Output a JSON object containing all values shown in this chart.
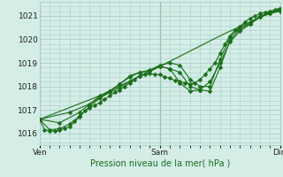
{
  "bg_color": "#d4ede6",
  "grid_color": "#a8cfca",
  "line_color": "#1a6e1a",
  "marker_color": "#1a6e1a",
  "title": "Pression niveau de la mer( hPa )",
  "xlim": [
    0,
    48
  ],
  "ylim": [
    1015.5,
    1021.6
  ],
  "yticks": [
    1016,
    1017,
    1018,
    1019,
    1020,
    1021
  ],
  "xtick_labels": [
    [
      "Ven",
      0
    ],
    [
      "Sam",
      24
    ],
    [
      "Dim",
      48
    ]
  ],
  "series": [
    [
      0,
      1016.6,
      1,
      1016.15,
      2,
      1016.1,
      3,
      1016.1,
      4,
      1016.15,
      5,
      1016.2,
      6,
      1016.3,
      7,
      1016.5,
      8,
      1016.7,
      9,
      1016.95,
      10,
      1017.1,
      11,
      1017.2,
      12,
      1017.3,
      13,
      1017.45,
      14,
      1017.6,
      15,
      1017.75,
      16,
      1017.85,
      17,
      1018.0,
      18,
      1018.15,
      19,
      1018.3,
      20,
      1018.45,
      21,
      1018.5,
      22,
      1018.55,
      23,
      1018.5,
      24,
      1018.5,
      25,
      1018.4,
      26,
      1018.35,
      27,
      1018.25,
      28,
      1018.2,
      29,
      1018.15,
      30,
      1018.1,
      31,
      1018.15,
      32,
      1018.3,
      33,
      1018.5,
      34,
      1018.75,
      35,
      1019.0,
      36,
      1019.4,
      37,
      1019.8,
      38,
      1020.15,
      39,
      1020.4,
      40,
      1020.55,
      41,
      1020.75,
      42,
      1020.9,
      43,
      1021.0,
      44,
      1021.1,
      45,
      1021.15,
      46,
      1021.2,
      47,
      1021.25,
      48,
      1021.3
    ],
    [
      0,
      1016.6,
      2,
      1016.15,
      4,
      1016.2,
      6,
      1016.4,
      8,
      1016.75,
      10,
      1017.15,
      12,
      1017.5,
      14,
      1017.75,
      16,
      1017.95,
      18,
      1018.2,
      20,
      1018.45,
      22,
      1018.65,
      24,
      1018.85,
      26,
      1018.75,
      28,
      1018.15,
      30,
      1017.8,
      32,
      1017.85,
      34,
      1018.2,
      36,
      1019.0,
      38,
      1019.9,
      40,
      1020.35,
      42,
      1020.65,
      44,
      1021.0,
      46,
      1021.15,
      48,
      1021.25
    ],
    [
      0,
      1016.6,
      4,
      1016.45,
      8,
      1016.9,
      12,
      1017.6,
      14,
      1017.8,
      16,
      1018.1,
      18,
      1018.45,
      20,
      1018.6,
      22,
      1018.65,
      24,
      1018.85,
      26,
      1018.75,
      28,
      1018.6,
      30,
      1018.0,
      32,
      1017.85,
      34,
      1017.8,
      36,
      1018.8,
      38,
      1019.95,
      40,
      1020.45,
      42,
      1020.65,
      44,
      1020.95,
      46,
      1021.1,
      48,
      1021.2
    ],
    [
      0,
      1016.6,
      6,
      1016.9,
      10,
      1017.25,
      14,
      1017.8,
      16,
      1018.1,
      18,
      1018.4,
      20,
      1018.6,
      22,
      1018.7,
      24,
      1018.9,
      26,
      1019.0,
      28,
      1018.9,
      30,
      1018.3,
      32,
      1018.0,
      34,
      1018.0,
      36,
      1019.15,
      38,
      1020.1,
      40,
      1020.5,
      42,
      1020.7,
      44,
      1020.95,
      46,
      1021.1,
      48,
      1021.25
    ],
    [
      0,
      1016.6,
      12,
      1017.6,
      24,
      1018.85,
      36,
      1020.15,
      48,
      1021.35
    ]
  ]
}
